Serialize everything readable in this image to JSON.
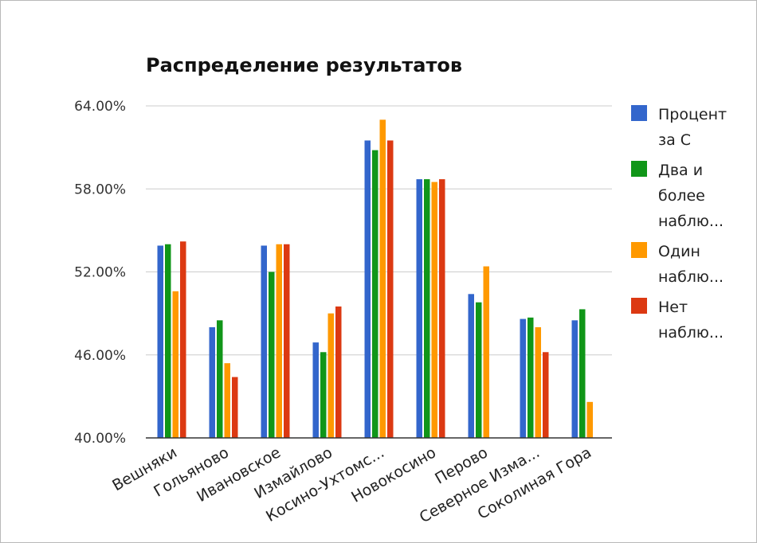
{
  "chart_data": {
    "type": "bar",
    "title": "Распределение результатов",
    "xlabel": "",
    "ylabel": "",
    "ylim": [
      40,
      64
    ],
    "yticks": [
      "40.00%",
      "46.00%",
      "52.00%",
      "58.00%",
      "64.00%"
    ],
    "ytick_values": [
      40,
      46,
      52,
      58,
      64
    ],
    "grid": true,
    "legend_position": "right",
    "categories": [
      "Вешняки",
      "Гольяново",
      "Ивановское",
      "Измайлово",
      "Косино-Ухтомс...",
      "Новокосино",
      "Перово",
      "Северное Изма...",
      "Соколиная Гора"
    ],
    "series": [
      {
        "name": "Процент за С",
        "legend_lines": [
          "Процент",
          "за С"
        ],
        "color": "#3366cc",
        "values": [
          53.9,
          48.0,
          53.9,
          46.9,
          61.5,
          58.7,
          50.4,
          48.6,
          48.5
        ]
      },
      {
        "name": "Два и более наблю...",
        "legend_lines": [
          "Два и",
          "более",
          "наблю..."
        ],
        "color": "#109618",
        "values": [
          54.0,
          48.5,
          52.0,
          46.2,
          60.8,
          58.7,
          49.8,
          48.7,
          49.3
        ]
      },
      {
        "name": "Один наблю...",
        "legend_lines": [
          "Один",
          "наблю..."
        ],
        "color": "#ff9900",
        "values": [
          50.6,
          45.4,
          54.0,
          49.0,
          63.0,
          58.5,
          52.4,
          48.0,
          42.6
        ]
      },
      {
        "name": "Нет наблю...",
        "legend_lines": [
          "Нет",
          "наблю..."
        ],
        "color": "#dc3912",
        "values": [
          54.2,
          44.4,
          54.0,
          49.5,
          61.5,
          58.7,
          null,
          46.2,
          null
        ]
      }
    ]
  }
}
